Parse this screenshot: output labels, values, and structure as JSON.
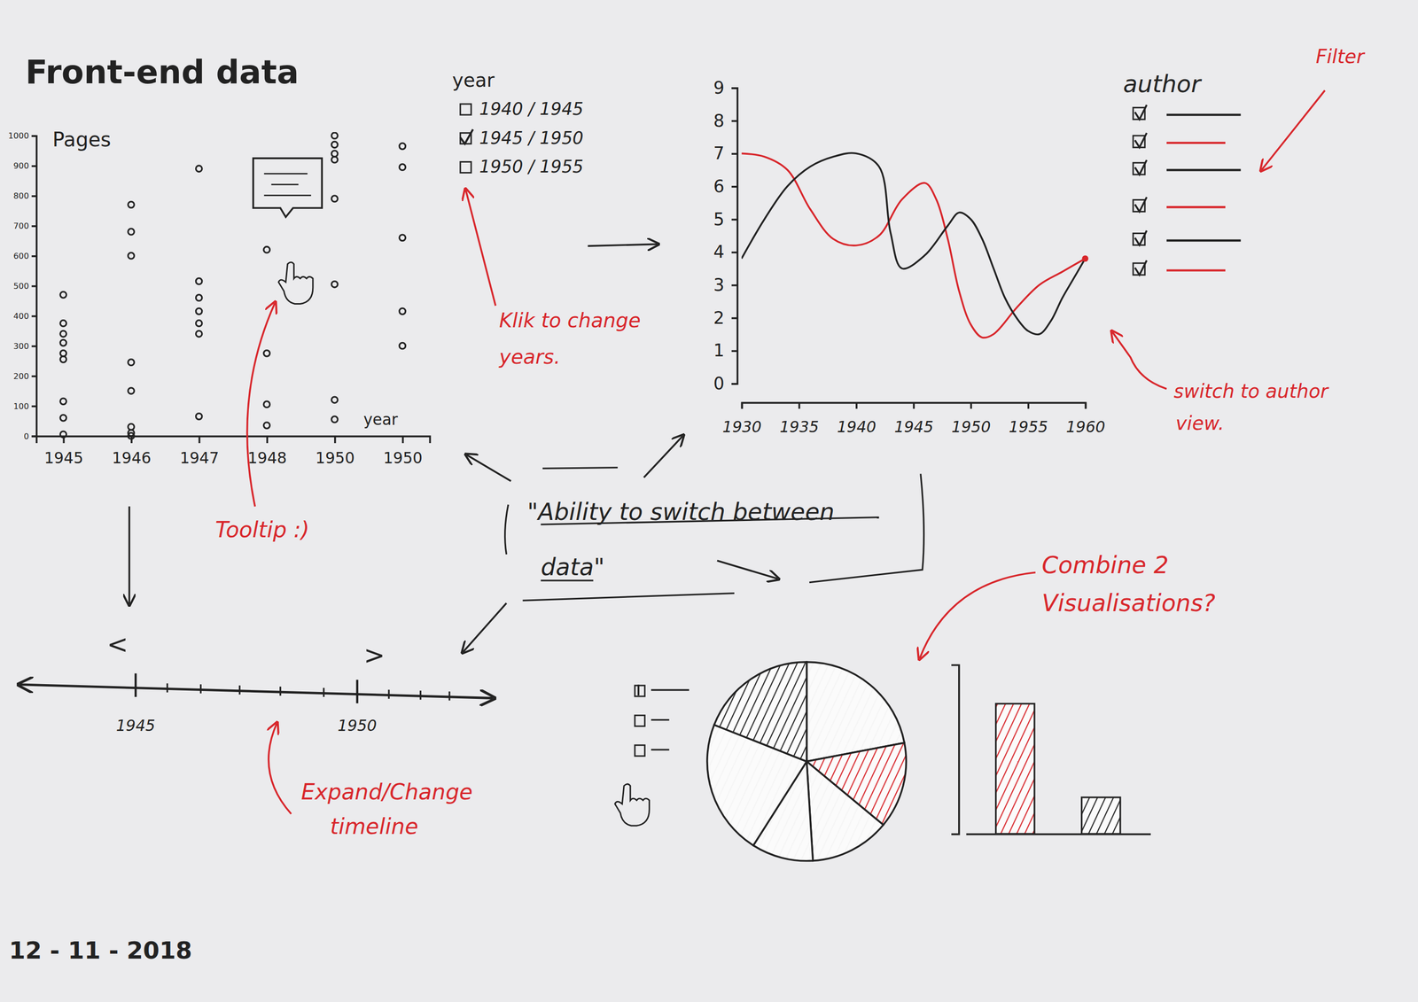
{
  "title": "Front-end data",
  "date": "12 - 11 - 2018",
  "chart_data": [
    {
      "type": "scatter",
      "y_label": "Pages",
      "x_label": "year",
      "categories": [
        "1945",
        "1946",
        "1947",
        "1948",
        "1950",
        "1950"
      ],
      "values": [
        [
          470,
          375,
          340,
          310,
          275,
          255,
          115,
          60,
          5
        ],
        [
          770,
          680,
          600,
          245,
          150,
          30,
          10,
          0
        ],
        [
          890,
          515,
          460,
          415,
          375,
          340,
          65
        ],
        [
          620,
          275,
          105,
          35
        ],
        [
          1000,
          970,
          940,
          920,
          790,
          505,
          120,
          55
        ],
        [
          965,
          895,
          660,
          415,
          300
        ]
      ],
      "color": "#222222",
      "marker": "circle",
      "ylim": [
        0,
        1000
      ],
      "yticks": [
        0,
        100,
        200,
        300,
        400,
        500,
        600,
        700,
        800,
        900,
        1000
      ]
    },
    {
      "type": "line",
      "xlim": [
        1930,
        1960
      ],
      "xticks": [
        1930,
        1935,
        1940,
        1945,
        1950,
        1955,
        1960
      ],
      "ylim": [
        0,
        9
      ],
      "yticks": [
        0,
        1,
        2,
        3,
        4,
        5,
        6,
        7,
        8,
        9
      ],
      "series": [
        {
          "color": "#d8262b",
          "x": [
            1930,
            1932,
            1934,
            1936,
            1938,
            1940,
            1942,
            1944,
            1946,
            1947,
            1948,
            1949,
            1950,
            1951,
            1952,
            1954,
            1956,
            1958,
            1960
          ],
          "values": [
            7.0,
            6.9,
            6.5,
            5.3,
            4.4,
            4.2,
            4.5,
            5.6,
            6.1,
            5.6,
            4.4,
            2.8,
            1.8,
            1.4,
            1.5,
            2.3,
            3.0,
            3.4,
            3.8
          ]
        },
        {
          "color": "#222222",
          "x": [
            1930,
            1932,
            1934,
            1936,
            1938,
            1940,
            1942,
            1943,
            1944,
            1946,
            1948,
            1949,
            1950,
            1951,
            1952,
            1953,
            1954,
            1955,
            1956,
            1957,
            1958,
            1959,
            1960
          ],
          "values": [
            3.8,
            5.0,
            6.0,
            6.6,
            6.9,
            7.0,
            6.6,
            4.6,
            3.5,
            3.9,
            4.8,
            5.2,
            5.0,
            4.4,
            3.5,
            2.6,
            2.0,
            1.6,
            1.5,
            1.9,
            2.6,
            3.2,
            3.8
          ]
        }
      ]
    },
    {
      "type": "pie",
      "values": [
        22,
        14,
        13,
        10,
        22,
        19
      ],
      "colors": [
        "#f5f5f5",
        "#d8262b",
        "#f5f5f5",
        "#f5f5f5",
        "#f5f5f5",
        "#222222"
      ]
    },
    {
      "type": "bar",
      "categories": [
        null,
        null
      ],
      "values": [
        100,
        28
      ],
      "colors": [
        "#d8262b",
        "#222222"
      ],
      "ylim": [
        0,
        130
      ],
      "tick_labels": false
    }
  ],
  "year_filter": {
    "title": "year",
    "options": [
      {
        "label": "1940 / 1945",
        "checked": false
      },
      {
        "label": "1945 / 1950",
        "checked": true
      },
      {
        "label": "1950 / 1955",
        "checked": false
      }
    ]
  },
  "author_filter": {
    "title": "author",
    "items": [
      {
        "checked": true,
        "color": "#222222"
      },
      {
        "checked": true,
        "color": "#d8262b"
      },
      {
        "checked": true,
        "color": "#222222"
      },
      {
        "checked": true,
        "color": "#d8262b"
      },
      {
        "checked": true,
        "color": "#222222"
      },
      {
        "checked": true,
        "color": "#d8262b"
      }
    ]
  },
  "pie_filter": {
    "items": [
      {
        "checked": true
      },
      {
        "checked": false
      },
      {
        "checked": false
      }
    ]
  },
  "timeline": {
    "labels": [
      "1945",
      "1950"
    ],
    "prev": "<",
    "next": ">"
  },
  "center_note": {
    "lines": [
      "\"Ability to switch between",
      "data\""
    ]
  },
  "annotations": [
    {
      "lines": [
        "Filter"
      ]
    },
    {
      "lines": [
        "Klik to change",
        "years."
      ]
    },
    {
      "lines": [
        "switch to author",
        "view."
      ]
    },
    {
      "lines": [
        "Tooltip :)"
      ]
    },
    {
      "lines": [
        "Expand/Change",
        "timeline"
      ]
    },
    {
      "lines": [
        "Combine 2",
        "Visualisations?"
      ]
    }
  ]
}
